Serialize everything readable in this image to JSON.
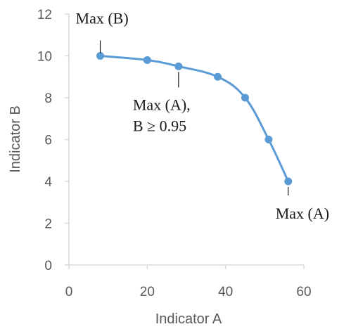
{
  "chart_data": {
    "type": "line",
    "xlabel": "Indicator A",
    "ylabel": "Indicator B",
    "xlim": [
      0,
      60
    ],
    "ylim": [
      0,
      12
    ],
    "xticks": [
      "0",
      "20",
      "40",
      "60"
    ],
    "yticks": [
      "0",
      "2",
      "4",
      "6",
      "8",
      "10",
      "12"
    ],
    "grid": false,
    "series": [
      {
        "color": "#5B9BD5",
        "x": [
          8,
          20,
          28,
          38,
          45,
          51,
          56
        ],
        "y": [
          10,
          9.8,
          9.5,
          9,
          8,
          6,
          4
        ]
      }
    ],
    "annotations": [
      {
        "lines": [
          "Max (B)"
        ],
        "x": 8,
        "y": 10
      },
      {
        "lines": [
          "Max (A),",
          "B ≥ 0.95"
        ],
        "x": 28,
        "y": 9.5
      },
      {
        "lines": [
          "Max (A)"
        ],
        "x": 56,
        "y": 4
      }
    ]
  }
}
